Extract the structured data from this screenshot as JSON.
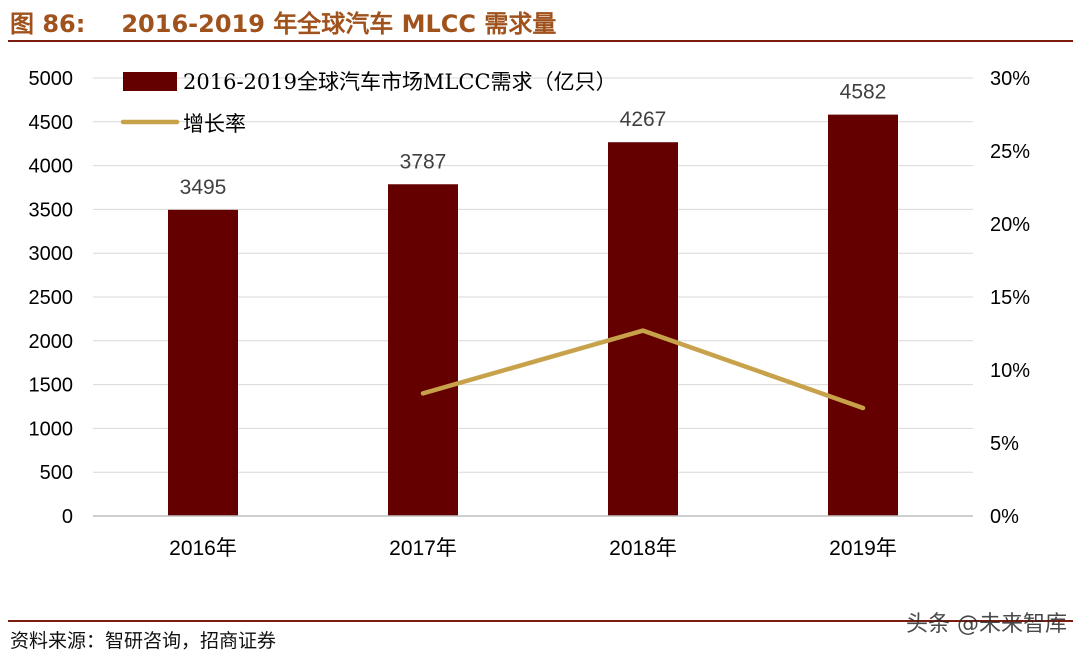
{
  "figure": {
    "number": "图 86:",
    "title": "2016-2019 年全球汽车 MLCC 需求量",
    "source": "资料来源：智研咨询，招商证券",
    "watermark": "头条 @未来智库"
  },
  "colors": {
    "bar": "#650000",
    "line": "#c8a24a",
    "title": "#a0521d",
    "rule": "#7b1c0f"
  },
  "chart_data": {
    "type": "bar",
    "categories": [
      "2016年",
      "2017年",
      "2018年",
      "2019年"
    ],
    "series": [
      {
        "name": "2016-2019全球汽车市场MLCC需求（亿只）",
        "type": "bar",
        "axis": "left",
        "values": [
          3495,
          3787,
          4267,
          4582
        ]
      },
      {
        "name": "增长率",
        "type": "line",
        "axis": "right",
        "values": [
          null,
          8.4,
          12.7,
          7.4
        ]
      }
    ],
    "data_labels": [
      "3495",
      "3787",
      "4267",
      "4582"
    ],
    "y_left": {
      "ylim": [
        0,
        5000
      ],
      "ticks": [
        "0",
        "500",
        "1000",
        "1500",
        "2000",
        "2500",
        "3000",
        "3500",
        "4000",
        "4500",
        "5000"
      ]
    },
    "y_right": {
      "ylim": [
        0,
        30
      ],
      "ticks": [
        "0%",
        "5%",
        "10%",
        "15%",
        "20%",
        "25%",
        "30%"
      ]
    },
    "grid": true,
    "legend": "top-left"
  }
}
